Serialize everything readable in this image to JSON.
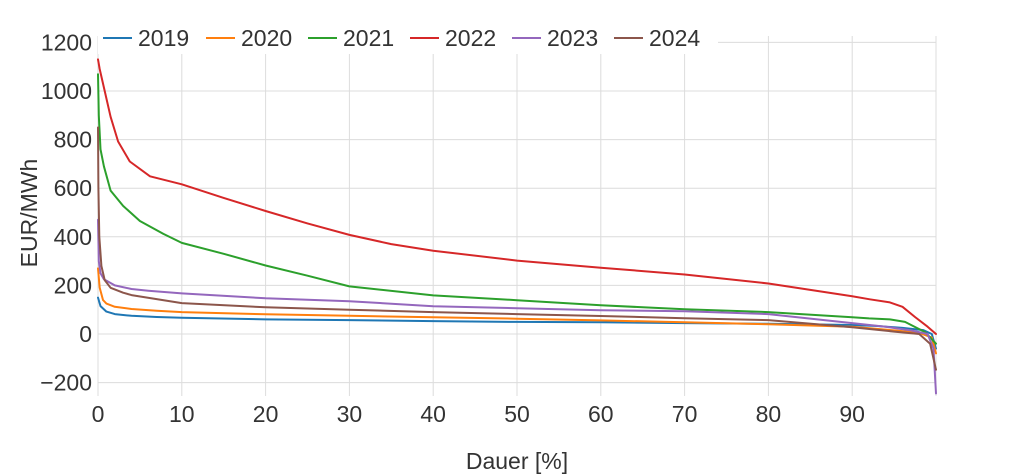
{
  "colors": {
    "background": "#ffffff",
    "grid": "#dcdcdc",
    "text": "#333333"
  },
  "chart_data": {
    "type": "line",
    "title": "",
    "xlabel": "Dauer [%]",
    "ylabel": "EUR/MWh",
    "xlim": [
      0,
      100
    ],
    "ylim": [
      -250,
      1200
    ],
    "xticks": [
      0,
      10,
      20,
      30,
      40,
      50,
      60,
      70,
      80,
      90
    ],
    "xtick_labels": [
      "0",
      "10",
      "20",
      "30",
      "40",
      "50",
      "60",
      "70",
      "80",
      "90"
    ],
    "yticks": [
      -200,
      0,
      200,
      400,
      600,
      800,
      1000,
      1200
    ],
    "ytick_labels": [
      "−200",
      "0",
      "200",
      "400",
      "600",
      "800",
      "1000",
      "1200"
    ],
    "grid": true,
    "legend_position": "top-left-horizontal",
    "series": [
      {
        "name": "2019",
        "color": "#1f77b4",
        "x": [
          0,
          0.3,
          1,
          2,
          4,
          7,
          10,
          20,
          30,
          40,
          50,
          60,
          70,
          80,
          90,
          93,
          96,
          98.5,
          99.5,
          100
        ],
        "y": [
          150,
          115,
          92,
          82,
          75,
          70,
          67,
          60,
          57,
          53,
          50,
          48,
          45,
          42,
          37,
          33,
          25,
          16,
          0,
          -60
        ]
      },
      {
        "name": "2020",
        "color": "#ff7f0e",
        "x": [
          0,
          0.2,
          0.6,
          1,
          2,
          4,
          7,
          10,
          20,
          30,
          40,
          50,
          60,
          70,
          80,
          90,
          95,
          98,
          99.5,
          100
        ],
        "y": [
          270,
          190,
          140,
          125,
          112,
          103,
          96,
          90,
          81,
          75,
          69,
          63,
          56,
          48,
          40,
          30,
          15,
          5,
          -15,
          -80
        ]
      },
      {
        "name": "2021",
        "color": "#2ca02c",
        "x": [
          0,
          0.1,
          0.3,
          0.7,
          1.5,
          3,
          5,
          7.8,
          10,
          15,
          20,
          25,
          30,
          40,
          50,
          60,
          70,
          80,
          90,
          92,
          94.5,
          96.3,
          98.7,
          100
        ],
        "y": [
          1069,
          900,
          760,
          690,
          590,
          527,
          465,
          412,
          375,
          330,
          282,
          240,
          196,
          159,
          139,
          118,
          102,
          90,
          69,
          64,
          60,
          50,
          8,
          -40
        ]
      },
      {
        "name": "2022",
        "color": "#d62728",
        "x": [
          0,
          0.2,
          0.8,
          1.5,
          2.4,
          3.8,
          6.2,
          10,
          15,
          20,
          25,
          30,
          35,
          40,
          50,
          60,
          70,
          80,
          90,
          92.1,
          94.5,
          96,
          97.5,
          99,
          100
        ],
        "y": [
          1130,
          1090,
          1000,
          894,
          792,
          710,
          649,
          616,
          560,
          506,
          455,
          408,
          370,
          343,
          302,
          273,
          245,
          208,
          155,
          143,
          130,
          112,
          70,
          30,
          0
        ]
      },
      {
        "name": "2023",
        "color": "#9467bd",
        "x": [
          0,
          0.1,
          0.3,
          0.7,
          2,
          4,
          6,
          10,
          20,
          30,
          40,
          50,
          60,
          70,
          80,
          90,
          94,
          97,
          99,
          99.7,
          100
        ],
        "y": [
          470,
          300,
          250,
          225,
          200,
          185,
          178,
          167,
          147,
          135,
          114,
          106,
          98,
          94,
          82,
          45,
          30,
          15,
          0,
          -60,
          -245
        ]
      },
      {
        "name": "2024",
        "color": "#8c564b",
        "x": [
          0,
          0.05,
          0.15,
          0.4,
          0.8,
          1.5,
          3,
          4,
          10,
          20,
          30,
          40,
          50,
          60,
          70,
          80,
          90,
          95,
          98,
          99.3,
          100
        ],
        "y": [
          850,
          600,
          400,
          280,
          222,
          190,
          170,
          160,
          127,
          110,
          100,
          90,
          82,
          74,
          65,
          57,
          28,
          10,
          0,
          -40,
          -147
        ]
      }
    ]
  }
}
